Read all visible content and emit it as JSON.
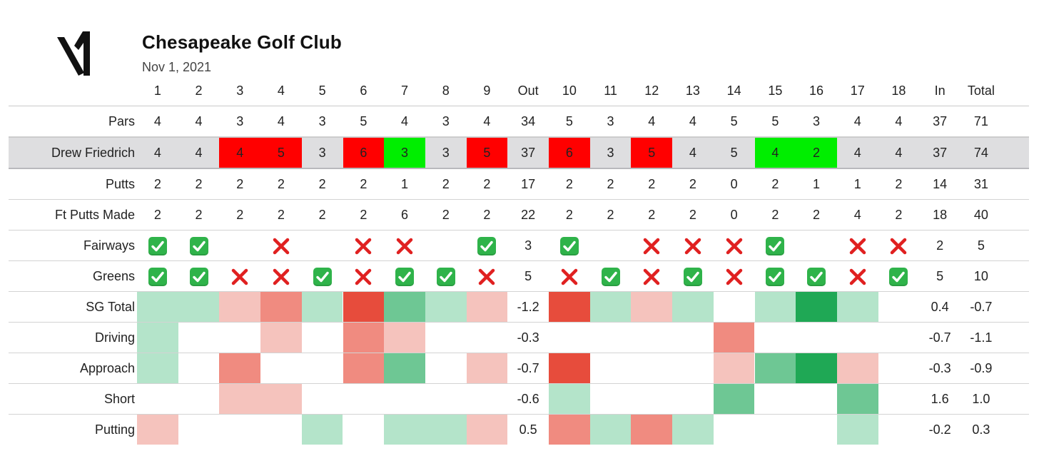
{
  "header": {
    "club": "Chesapeake Golf Club",
    "date": "Nov 1, 2021",
    "logo_icon": "v1-logo-icon"
  },
  "columns": [
    "1",
    "2",
    "3",
    "4",
    "5",
    "6",
    "7",
    "8",
    "9",
    "Out",
    "10",
    "11",
    "12",
    "13",
    "14",
    "15",
    "16",
    "17",
    "18",
    "In",
    "Total"
  ],
  "colors": {
    "score_over": "#ff0000",
    "score_under": "#00ee00",
    "player_row_bg": "#dedee0",
    "sg_neg_3": "#e74c3c",
    "sg_neg_2": "#f08b80",
    "sg_neg_1": "#f5c3bd",
    "sg_pos_1": "#b4e4ca",
    "sg_pos_2": "#6ec794",
    "sg_pos_3": "#1fa855",
    "check": "#2fb34a",
    "cross": "#e02020"
  },
  "rows": [
    {
      "key": "pars",
      "label": "Pars",
      "kind": "text",
      "values": [
        "4",
        "4",
        "3",
        "4",
        "3",
        "5",
        "4",
        "3",
        "4",
        "34",
        "5",
        "3",
        "4",
        "4",
        "5",
        "5",
        "3",
        "4",
        "4",
        "37",
        "71"
      ]
    },
    {
      "key": "player",
      "label": "Drew Friedrich",
      "kind": "score",
      "values": [
        "4",
        "4",
        "4",
        "5",
        "3",
        "6",
        "3",
        "3",
        "5",
        "37",
        "6",
        "3",
        "5",
        "4",
        "5",
        "4",
        "2",
        "4",
        "4",
        "37",
        "74"
      ],
      "status": [
        "even",
        "even",
        "over",
        "over",
        "even",
        "over",
        "under",
        "even",
        "over",
        "",
        "over",
        "even",
        "over",
        "even",
        "even",
        "under",
        "under",
        "even",
        "even",
        "",
        ""
      ]
    },
    {
      "key": "putts",
      "label": "Putts",
      "kind": "text",
      "values": [
        "2",
        "2",
        "2",
        "2",
        "2",
        "2",
        "1",
        "2",
        "2",
        "17",
        "2",
        "2",
        "2",
        "2",
        "0",
        "2",
        "1",
        "1",
        "2",
        "14",
        "31"
      ]
    },
    {
      "key": "ft_putts",
      "label": "Ft Putts Made",
      "kind": "text",
      "values": [
        "2",
        "2",
        "2",
        "2",
        "2",
        "2",
        "6",
        "2",
        "2",
        "22",
        "2",
        "2",
        "2",
        "2",
        "0",
        "2",
        "2",
        "4",
        "2",
        "18",
        "40"
      ]
    },
    {
      "key": "fairways",
      "label": "Fairways",
      "kind": "mark",
      "values": [
        "check",
        "check",
        "",
        "cross",
        "",
        "cross",
        "cross",
        "",
        "check",
        "3",
        "check",
        "",
        "cross",
        "cross",
        "cross",
        "check",
        "",
        "cross",
        "cross",
        "2",
        "5"
      ]
    },
    {
      "key": "greens",
      "label": "Greens",
      "kind": "mark",
      "values": [
        "check",
        "check",
        "cross",
        "cross",
        "check",
        "cross",
        "check",
        "check",
        "cross",
        "5",
        "cross",
        "check",
        "cross",
        "check",
        "cross",
        "check",
        "check",
        "cross",
        "check",
        "5",
        "10"
      ]
    },
    {
      "key": "sg_total",
      "label": "SG Total",
      "kind": "heat",
      "levels": [
        1,
        1,
        -1,
        -2,
        1,
        -3,
        2,
        1,
        -1,
        null,
        -3,
        1,
        -1,
        1,
        0,
        1,
        3,
        1,
        0,
        null,
        null
      ],
      "values": [
        "",
        "",
        "",
        "",
        "",
        "",
        "",
        "",
        "",
        "-1.2",
        "",
        "",
        "",
        "",
        "",
        "",
        "",
        "",
        "",
        "0.4",
        "-0.7"
      ]
    },
    {
      "key": "sg_driving",
      "label": "Driving",
      "kind": "heat",
      "levels": [
        1,
        0,
        0,
        -1,
        0,
        -2,
        -1,
        0,
        0,
        null,
        0,
        0,
        0,
        0,
        -2,
        0,
        0,
        0,
        0,
        null,
        null
      ],
      "values": [
        "",
        "",
        "",
        "",
        "",
        "",
        "",
        "",
        "",
        "-0.3",
        "",
        "",
        "",
        "",
        "",
        "",
        "",
        "",
        "",
        "-0.7",
        "-1.1"
      ]
    },
    {
      "key": "sg_approach",
      "label": "Approach",
      "kind": "heat",
      "levels": [
        1,
        0,
        -2,
        0,
        0,
        -2,
        2,
        0,
        -1,
        null,
        -3,
        0,
        0,
        0,
        -1,
        2,
        3,
        -1,
        0,
        null,
        null
      ],
      "values": [
        "",
        "",
        "",
        "",
        "",
        "",
        "",
        "",
        "",
        "-0.7",
        "",
        "",
        "",
        "",
        "",
        "",
        "",
        "",
        "",
        "-0.3",
        "-0.9"
      ]
    },
    {
      "key": "sg_short",
      "label": "Short",
      "kind": "heat",
      "levels": [
        0,
        0,
        -1,
        -1,
        0,
        0,
        0,
        0,
        0,
        null,
        1,
        0,
        0,
        0,
        2,
        0,
        0,
        2,
        0,
        null,
        null
      ],
      "values": [
        "",
        "",
        "",
        "",
        "",
        "",
        "",
        "",
        "",
        "-0.6",
        "",
        "",
        "",
        "",
        "",
        "",
        "",
        "",
        "",
        "1.6",
        "1.0"
      ]
    },
    {
      "key": "sg_putting",
      "label": "Putting",
      "kind": "heat",
      "levels": [
        -1,
        0,
        0,
        0,
        1,
        0,
        1,
        1,
        -1,
        null,
        -2,
        1,
        -2,
        1,
        0,
        0,
        0,
        1,
        0,
        null,
        null
      ],
      "values": [
        "",
        "",
        "",
        "",
        "",
        "",
        "",
        "",
        "",
        "0.5",
        "",
        "",
        "",
        "",
        "",
        "",
        "",
        "",
        "",
        "-0.2",
        "0.3"
      ]
    }
  ]
}
